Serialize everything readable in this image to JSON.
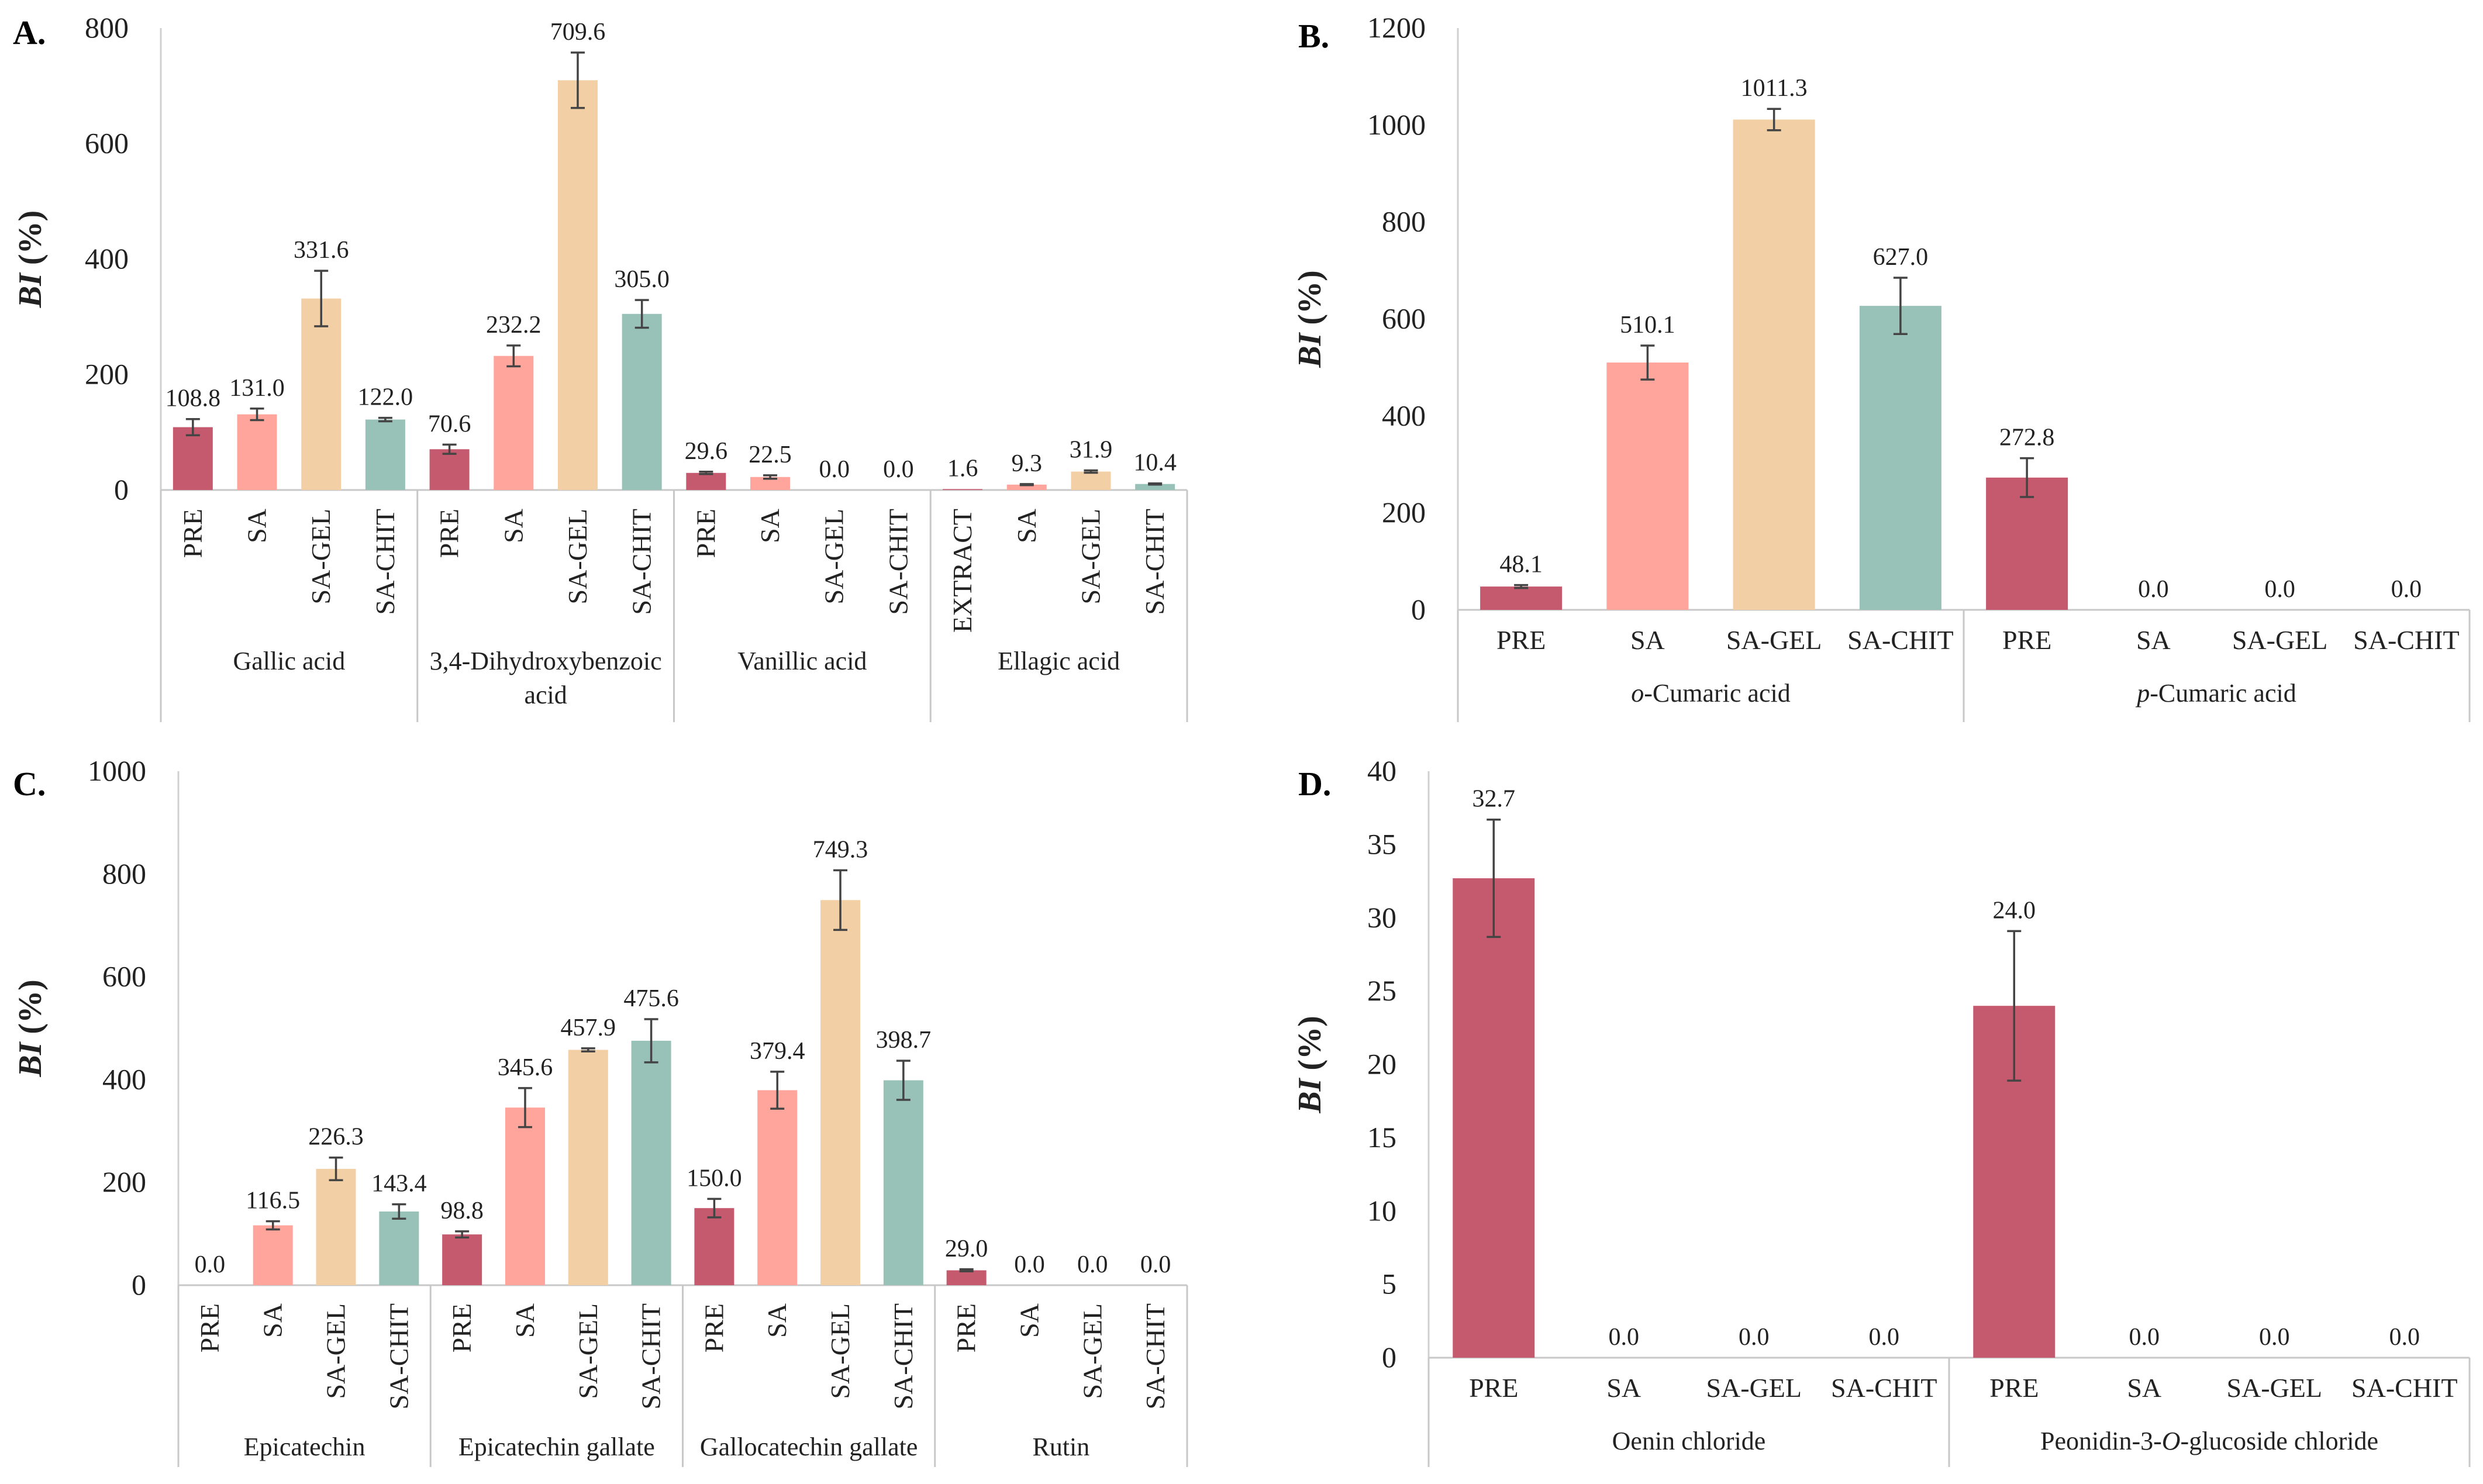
{
  "colors": {
    "PRE": "#c55a6e",
    "SA": "#ffa59b",
    "SA-GEL": "#f2cfa5",
    "SA-CHIT": "#98c2b8",
    "EXTRACT": "#c55a6e"
  },
  "chart_data": [
    {
      "id": "A",
      "letter": "A.",
      "type": "bar",
      "ylabel_em": "BI",
      "ylabel_rest": " (%)",
      "ylim": [
        0,
        800
      ],
      "yticks": [
        0,
        200,
        400,
        600,
        800
      ],
      "groups": [
        {
          "name_lines": [
            "Gallic acid"
          ],
          "bars": [
            {
              "label": "PRE",
              "value": 108.8,
              "err": 14,
              "text": "108.8"
            },
            {
              "label": "SA",
              "value": 131.0,
              "err": 10,
              "text": "131.0"
            },
            {
              "label": "SA-GEL",
              "value": 331.6,
              "err": 48,
              "text": "331.6"
            },
            {
              "label": "SA-CHIT",
              "value": 122.0,
              "err": 3,
              "text": "122.0"
            }
          ]
        },
        {
          "name_lines": [
            "3,4-Dihydroxybenzoic",
            "acid"
          ],
          "bars": [
            {
              "label": "PRE",
              "value": 70.6,
              "err": 8,
              "text": "70.6"
            },
            {
              "label": "SA",
              "value": 232.2,
              "err": 18,
              "text": "232.2"
            },
            {
              "label": "SA-GEL",
              "value": 709.6,
              "err": 48,
              "text": "709.6"
            },
            {
              "label": "SA-CHIT",
              "value": 305.0,
              "err": 24,
              "text": "305.0"
            }
          ]
        },
        {
          "name_lines": [
            "Vanillic acid"
          ],
          "bars": [
            {
              "label": "PRE",
              "value": 29.6,
              "err": 2,
              "text": "29.6"
            },
            {
              "label": "SA",
              "value": 22.5,
              "err": 3,
              "text": "22.5"
            },
            {
              "label": "SA-GEL",
              "value": 0.0,
              "err": 0,
              "text": "0.0"
            },
            {
              "label": "SA-CHIT",
              "value": 0.0,
              "err": 0,
              "text": "0.0"
            }
          ]
        },
        {
          "name_lines": [
            "Ellagic acid"
          ],
          "bars": [
            {
              "label": "EXTRACT",
              "value": 1.6,
              "err": 0,
              "text": "1.6"
            },
            {
              "label": "SA",
              "value": 9.3,
              "err": 1,
              "text": "9.3"
            },
            {
              "label": "SA-GEL",
              "value": 31.9,
              "err": 2,
              "text": "31.9"
            },
            {
              "label": "SA-CHIT",
              "value": 10.4,
              "err": 1,
              "text": "10.4"
            }
          ]
        }
      ]
    },
    {
      "id": "B",
      "letter": "B.",
      "type": "bar",
      "ylabel_em": "BI",
      "ylabel_rest": " (%)",
      "ylim": [
        0,
        1200
      ],
      "yticks": [
        0,
        200,
        400,
        600,
        800,
        1000,
        1200
      ],
      "groups": [
        {
          "name_lines": [
            "o-Cumaric acid"
          ],
          "name_em": "o",
          "name_rest": "-Cumaric acid",
          "bars": [
            {
              "label": "PRE",
              "value": 48.1,
              "err": 3,
              "text": "48.1"
            },
            {
              "label": "SA",
              "value": 510.1,
              "err": 35,
              "text": "510.1"
            },
            {
              "label": "SA-GEL",
              "value": 1011.3,
              "err": 22,
              "text": "1011.3"
            },
            {
              "label": "SA-CHIT",
              "value": 627.0,
              "err": 58,
              "text": "627.0"
            }
          ]
        },
        {
          "name_lines": [
            "p-Cumaric acid"
          ],
          "name_em": "p",
          "name_rest": "-Cumaric acid",
          "bars": [
            {
              "label": "PRE",
              "value": 272.8,
              "err": 40,
              "text": "272.8"
            },
            {
              "label": "SA",
              "value": 0.0,
              "err": 0,
              "text": "0.0"
            },
            {
              "label": "SA-GEL",
              "value": 0.0,
              "err": 0,
              "text": "0.0"
            },
            {
              "label": "SA-CHIT",
              "value": 0.0,
              "err": 0,
              "text": "0.0"
            }
          ]
        }
      ]
    },
    {
      "id": "C",
      "letter": "C.",
      "type": "bar",
      "ylabel_em": "BI",
      "ylabel_rest": " (%)",
      "ylim": [
        0,
        1000
      ],
      "yticks": [
        0,
        200,
        400,
        600,
        800,
        1000
      ],
      "groups": [
        {
          "name_lines": [
            "Epicatechin"
          ],
          "bars": [
            {
              "label": "PRE",
              "value": 0.0,
              "err": 0,
              "text": "0.0"
            },
            {
              "label": "SA",
              "value": 116.5,
              "err": 8,
              "text": "116.5"
            },
            {
              "label": "SA-GEL",
              "value": 226.3,
              "err": 22,
              "text": "226.3"
            },
            {
              "label": "SA-CHIT",
              "value": 143.4,
              "err": 14,
              "text": "143.4"
            }
          ]
        },
        {
          "name_lines": [
            "Epicatechin gallate"
          ],
          "bars": [
            {
              "label": "PRE",
              "value": 98.8,
              "err": 6,
              "text": "98.8"
            },
            {
              "label": "SA",
              "value": 345.6,
              "err": 38,
              "text": "345.6"
            },
            {
              "label": "SA-GEL",
              "value": 457.9,
              "err": 3,
              "text": "457.9"
            },
            {
              "label": "SA-CHIT",
              "value": 475.6,
              "err": 42,
              "text": "475.6"
            }
          ]
        },
        {
          "name_lines": [
            "Gallocatechin gallate"
          ],
          "bars": [
            {
              "label": "PRE",
              "value": 150.0,
              "err": 18,
              "text": "150.0"
            },
            {
              "label": "SA",
              "value": 379.4,
              "err": 36,
              "text": "379.4"
            },
            {
              "label": "SA-GEL",
              "value": 749.3,
              "err": 58,
              "text": "749.3"
            },
            {
              "label": "SA-CHIT",
              "value": 398.7,
              "err": 38,
              "text": "398.7"
            }
          ]
        },
        {
          "name_lines": [
            "Rutin"
          ],
          "bars": [
            {
              "label": "PRE",
              "value": 29.0,
              "err": 2,
              "text": "29.0"
            },
            {
              "label": "SA",
              "value": 0.0,
              "err": 0,
              "text": "0.0"
            },
            {
              "label": "SA-GEL",
              "value": 0.0,
              "err": 0,
              "text": "0.0"
            },
            {
              "label": "SA-CHIT",
              "value": 0.0,
              "err": 0,
              "text": "0.0"
            }
          ]
        }
      ]
    },
    {
      "id": "D",
      "letter": "D.",
      "type": "bar",
      "ylabel_em": "BI",
      "ylabel_rest": " (%)",
      "ylim": [
        0,
        40
      ],
      "yticks": [
        0,
        5,
        10,
        15,
        20,
        25,
        30,
        35,
        40
      ],
      "groups": [
        {
          "name_lines": [
            "Oenin chloride"
          ],
          "bars": [
            {
              "label": "PRE",
              "value": 32.7,
              "err": 4,
              "text": "32.7"
            },
            {
              "label": "SA",
              "value": 0.0,
              "err": 0,
              "text": "0.0"
            },
            {
              "label": "SA-GEL",
              "value": 0.0,
              "err": 0,
              "text": "0.0"
            },
            {
              "label": "SA-CHIT",
              "value": 0.0,
              "err": 0,
              "text": "0.0"
            }
          ]
        },
        {
          "name_lines": [
            "Peonidin-3-O-glucoside chloride"
          ],
          "name_parts": [
            "Peonidin-3-",
            "O",
            "-glucoside chloride"
          ],
          "bars": [
            {
              "label": "PRE",
              "value": 24.0,
              "err": 5.1,
              "text": "24.0"
            },
            {
              "label": "SA",
              "value": 0.0,
              "err": 0,
              "text": "0.0"
            },
            {
              "label": "SA-GEL",
              "value": 0.0,
              "err": 0,
              "text": "0.0"
            },
            {
              "label": "SA-CHIT",
              "value": 0.0,
              "err": 0,
              "text": "0.0"
            }
          ]
        }
      ]
    }
  ]
}
